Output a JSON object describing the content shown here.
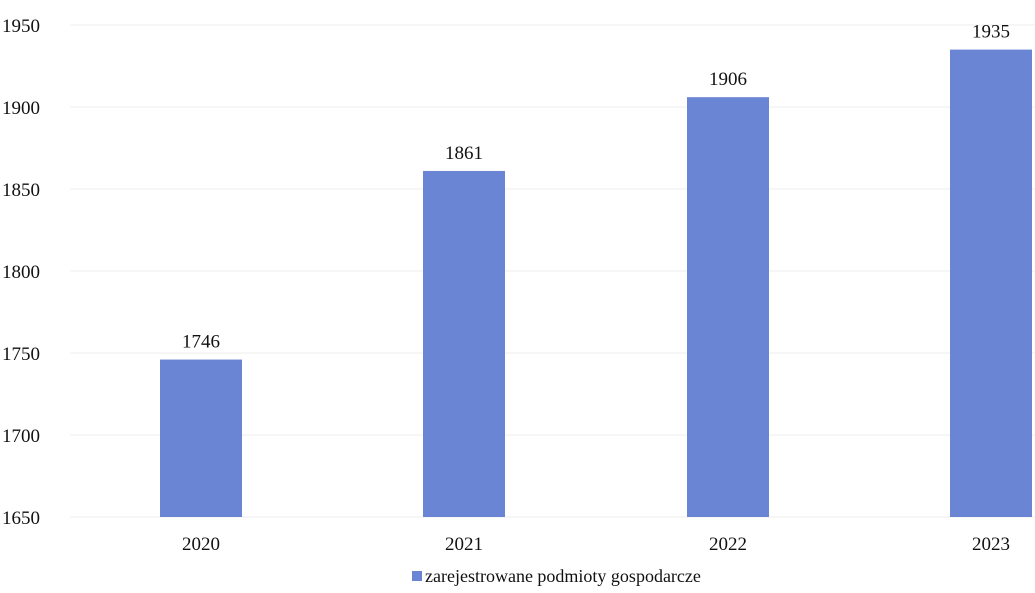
{
  "chart_data": {
    "type": "bar",
    "categories": [
      "2020",
      "2021",
      "2022",
      "2023"
    ],
    "series": [
      {
        "name": "zarejestrowane podmioty gospodarcze",
        "values": [
          1746,
          1861,
          1906,
          1935
        ],
        "color": "#6a85d4"
      }
    ],
    "data_labels": [
      "1746",
      "1861",
      "1906",
      "1935"
    ],
    "y_ticks": [
      "1650",
      "1700",
      "1750",
      "1800",
      "1850",
      "1900",
      "1950"
    ],
    "ylim": [
      1650,
      1950
    ],
    "grid": true,
    "legend": "bottom-center",
    "title": "",
    "xlabel": "",
    "ylabel": ""
  }
}
